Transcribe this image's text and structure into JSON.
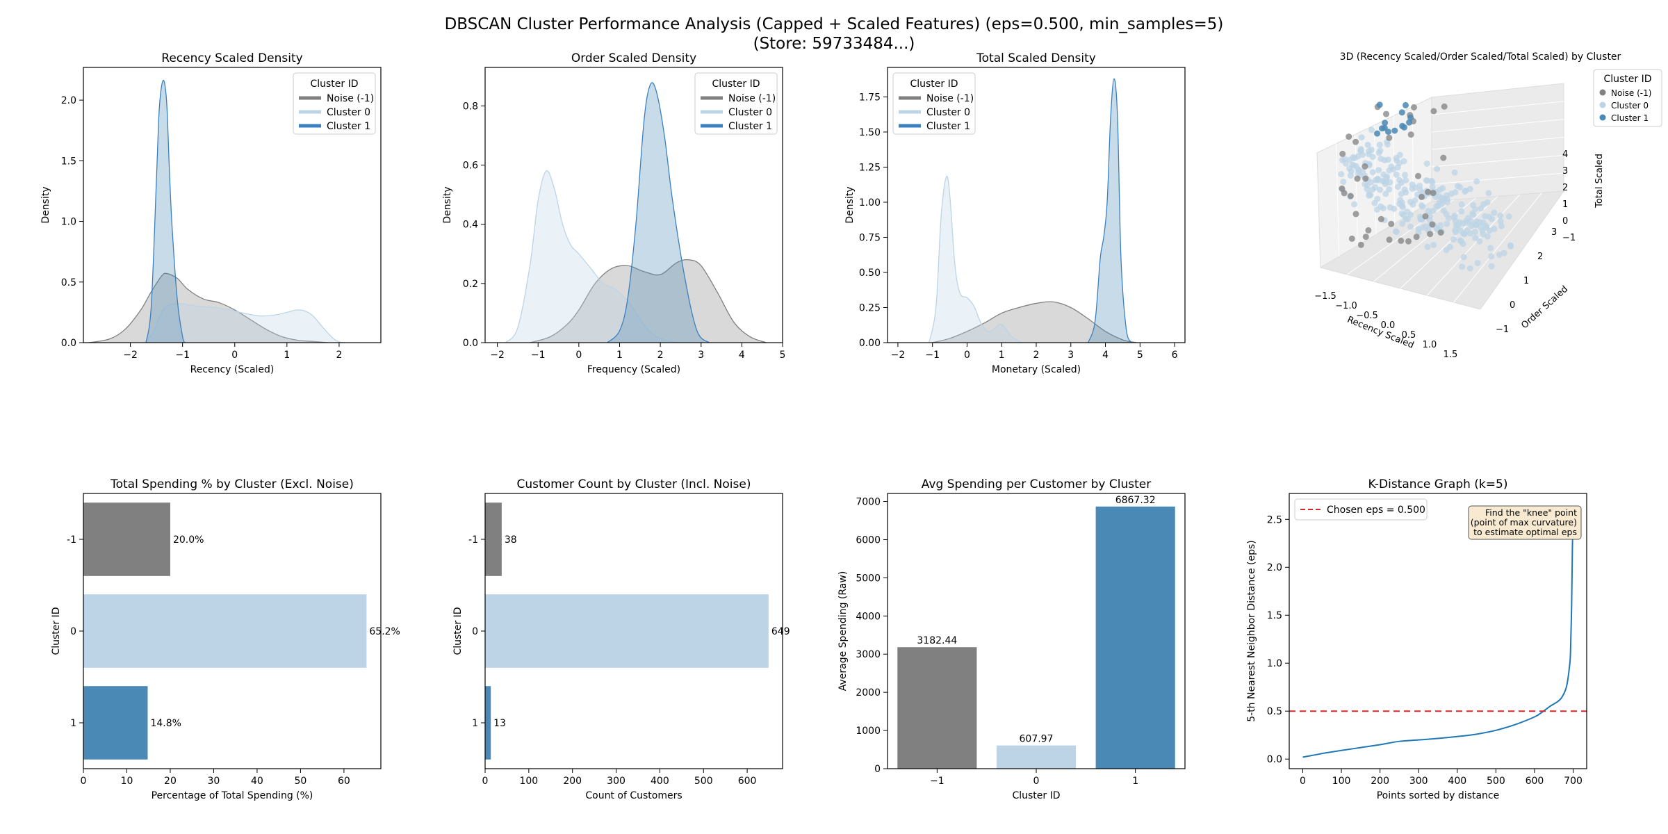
{
  "figure": {
    "title_line1": "DBSCAN Cluster Performance Analysis (Capped + Scaled Features) (eps=0.500, min_samples=5)",
    "title_line2": "(Store: 59733484...)"
  },
  "colors": {
    "noise": "#808080",
    "cluster0": "#bcd4e6",
    "cluster1": "#4a88b5",
    "line_cluster1": "#3a80c0",
    "kdist_line": "#1f77b4",
    "eps_line": "#d62728",
    "annot_bg": "#f7ead0"
  },
  "chart_data": [
    {
      "type": "area",
      "title": "Recency Scaled Density",
      "xlabel": "Recency (Scaled)",
      "ylabel": "Density",
      "xlim": [
        -2.9,
        2.8
      ],
      "ylim": [
        0,
        2.27
      ],
      "xticks": [
        -2,
        -1,
        0,
        1,
        2
      ],
      "yticks": [
        0.0,
        0.5,
        1.0,
        1.5,
        2.0
      ],
      "ytick_labels": [
        "0.0",
        "0.5",
        "1.0",
        "1.5",
        "2.0"
      ],
      "legend": {
        "title": "Cluster ID",
        "position": "top-right",
        "entries": [
          "Noise (-1)",
          "Cluster 0",
          "Cluster 1"
        ]
      },
      "series": [
        {
          "name": "Noise (-1)",
          "x": [
            -2.8,
            -2.4,
            -2.1,
            -1.8,
            -1.6,
            -1.4,
            -1.3,
            -1.1,
            -0.9,
            -0.6,
            -0.3,
            0.0,
            0.3,
            0.6,
            0.9,
            1.2,
            1.5,
            1.8,
            2.1
          ],
          "y": [
            0.0,
            0.03,
            0.11,
            0.27,
            0.42,
            0.55,
            0.57,
            0.53,
            0.44,
            0.36,
            0.33,
            0.27,
            0.19,
            0.11,
            0.05,
            0.02,
            0.01,
            0.0,
            0.0
          ]
        },
        {
          "name": "Cluster 0",
          "x": [
            -1.75,
            -1.6,
            -1.5,
            -1.4,
            -1.3,
            -1.15,
            -1.0,
            -0.7,
            -0.4,
            -0.1,
            0.2,
            0.5,
            0.8,
            1.0,
            1.2,
            1.35,
            1.5,
            1.7,
            1.9,
            2.05
          ],
          "y": [
            0.0,
            0.06,
            0.15,
            0.25,
            0.3,
            0.32,
            0.32,
            0.3,
            0.29,
            0.27,
            0.24,
            0.22,
            0.23,
            0.25,
            0.27,
            0.26,
            0.22,
            0.12,
            0.03,
            0.0
          ]
        },
        {
          "name": "Cluster 1",
          "x": [
            -1.7,
            -1.6,
            -1.5,
            -1.45,
            -1.4,
            -1.35,
            -1.3,
            -1.25,
            -1.2,
            -1.1,
            -1.0,
            -0.95
          ],
          "y": [
            0.0,
            0.3,
            1.35,
            1.9,
            2.12,
            2.15,
            1.95,
            1.4,
            0.95,
            0.35,
            0.05,
            0.0
          ]
        }
      ]
    },
    {
      "type": "area",
      "title": "Order Scaled Density",
      "xlabel": "Frequency (Scaled)",
      "ylabel": "Density",
      "xlim": [
        -2.3,
        5.0
      ],
      "ylim": [
        0,
        0.93
      ],
      "xticks": [
        -2,
        -1,
        0,
        1,
        2,
        3,
        4,
        5
      ],
      "yticks": [
        0.0,
        0.2,
        0.4,
        0.6,
        0.8
      ],
      "ytick_labels": [
        "0.0",
        "0.2",
        "0.4",
        "0.6",
        "0.8"
      ],
      "legend": {
        "title": "Cluster ID",
        "position": "top-right",
        "entries": [
          "Noise (-1)",
          "Cluster 0",
          "Cluster 1"
        ]
      },
      "series": [
        {
          "name": "Noise (-1)",
          "x": [
            -1.2,
            -0.7,
            -0.3,
            0.0,
            0.4,
            0.8,
            1.2,
            1.6,
            2.0,
            2.4,
            2.7,
            3.0,
            3.4,
            3.8,
            4.2,
            4.6
          ],
          "y": [
            0.0,
            0.02,
            0.06,
            0.11,
            0.2,
            0.25,
            0.26,
            0.24,
            0.23,
            0.27,
            0.28,
            0.26,
            0.17,
            0.07,
            0.02,
            0.0
          ]
        },
        {
          "name": "Cluster 0",
          "x": [
            -1.8,
            -1.5,
            -1.2,
            -1.0,
            -0.8,
            -0.6,
            -0.4,
            -0.2,
            0.0,
            0.3,
            0.6,
            0.9,
            1.2,
            1.5,
            1.8,
            2.1,
            2.4
          ],
          "y": [
            0.0,
            0.05,
            0.26,
            0.48,
            0.58,
            0.52,
            0.4,
            0.33,
            0.3,
            0.25,
            0.2,
            0.18,
            0.14,
            0.08,
            0.03,
            0.01,
            0.0
          ]
        },
        {
          "name": "Cluster 1",
          "x": [
            0.7,
            1.0,
            1.2,
            1.4,
            1.6,
            1.75,
            1.9,
            2.1,
            2.3,
            2.6,
            2.9,
            3.2
          ],
          "y": [
            0.0,
            0.04,
            0.15,
            0.4,
            0.75,
            0.87,
            0.85,
            0.7,
            0.48,
            0.22,
            0.04,
            0.0
          ]
        }
      ]
    },
    {
      "type": "area",
      "title": "Total Scaled Density",
      "xlabel": "Monetary (Scaled)",
      "ylabel": "Density",
      "xlim": [
        -2.3,
        6.3
      ],
      "ylim": [
        0,
        1.96
      ],
      "xticks": [
        -2,
        -1,
        0,
        1,
        2,
        3,
        4,
        5,
        6
      ],
      "yticks": [
        0.0,
        0.25,
        0.5,
        0.75,
        1.0,
        1.25,
        1.5,
        1.75
      ],
      "ytick_labels": [
        "0.00",
        "0.25",
        "0.50",
        "0.75",
        "1.00",
        "1.25",
        "1.50",
        "1.75"
      ],
      "legend": {
        "title": "Cluster ID",
        "position": "top-left",
        "entries": [
          "Noise (-1)",
          "Cluster 0",
          "Cluster 1"
        ]
      },
      "series": [
        {
          "name": "Noise (-1)",
          "x": [
            -1.0,
            -0.5,
            0.0,
            0.5,
            1.0,
            1.5,
            2.0,
            2.5,
            3.0,
            3.5,
            4.0,
            4.5,
            4.9
          ],
          "y": [
            0.0,
            0.03,
            0.08,
            0.14,
            0.21,
            0.25,
            0.28,
            0.29,
            0.25,
            0.17,
            0.08,
            0.02,
            0.0
          ]
        },
        {
          "name": "Cluster 0",
          "x": [
            -1.1,
            -0.9,
            -0.75,
            -0.6,
            -0.5,
            -0.35,
            -0.2,
            0.0,
            0.2,
            0.4,
            0.6,
            0.8,
            1.0,
            1.3,
            1.6
          ],
          "y": [
            0.0,
            0.25,
            0.9,
            1.18,
            1.05,
            0.55,
            0.35,
            0.32,
            0.26,
            0.14,
            0.08,
            0.1,
            0.13,
            0.04,
            0.0
          ]
        },
        {
          "name": "Cluster 1",
          "x": [
            3.5,
            3.7,
            3.85,
            3.95,
            4.05,
            4.15,
            4.25,
            4.35,
            4.45,
            4.6,
            4.75
          ],
          "y": [
            0.0,
            0.15,
            0.6,
            0.75,
            1.0,
            1.6,
            1.88,
            1.6,
            0.6,
            0.1,
            0.0
          ]
        }
      ]
    },
    {
      "type": "scatter",
      "title": "3D (Recency Scaled/Order Scaled/Total Scaled) by Cluster",
      "xlabel": "Recency Scaled",
      "ylabel": "Order Scaled",
      "zlabel": "Total Scaled",
      "xticks": [
        "−1.5",
        "−1.0",
        "−0.5",
        "0.0",
        "0.5",
        "1.0",
        "1.5"
      ],
      "yticks": [
        "−1",
        "0",
        "1",
        "2",
        "3"
      ],
      "zticks": [
        "−1",
        "0",
        "1",
        "2",
        "3",
        "4"
      ],
      "legend": {
        "title": "Cluster ID",
        "position": "outside-right",
        "entries": [
          "Noise (-1)",
          "Cluster 0",
          "Cluster 1"
        ]
      }
    },
    {
      "type": "bar",
      "orientation": "horizontal",
      "title": "Total Spending % by Cluster (Excl. Noise)",
      "xlabel": "Percentage of Total Spending (%)",
      "ylabel": "Cluster ID",
      "categories": [
        "-1",
        "0",
        "1"
      ],
      "values": [
        20.0,
        65.2,
        14.8
      ],
      "data_labels": [
        "20.0%",
        "65.2%",
        "14.8%"
      ],
      "xlim": [
        0,
        68.5
      ],
      "xticks": [
        0,
        10,
        20,
        30,
        40,
        50,
        60
      ]
    },
    {
      "type": "bar",
      "orientation": "horizontal",
      "title": "Customer Count by Cluster (Incl. Noise)",
      "xlabel": "Count of Customers",
      "ylabel": "Cluster ID",
      "categories": [
        "-1",
        "0",
        "1"
      ],
      "values": [
        38,
        649,
        13
      ],
      "data_labels": [
        "38",
        "649",
        "13"
      ],
      "xlim": [
        0,
        681
      ],
      "xticks": [
        0,
        100,
        200,
        300,
        400,
        500,
        600
      ]
    },
    {
      "type": "bar",
      "orientation": "vertical",
      "title": "Avg Spending per Customer by Cluster",
      "xlabel": "Cluster ID",
      "ylabel": "Average Spending (Raw)",
      "categories": [
        "-1",
        "0",
        "1"
      ],
      "values": [
        3182.44,
        607.97,
        6867.32
      ],
      "data_labels": [
        "3182.44",
        "607.97",
        "6867.32"
      ],
      "ylim": [
        0,
        7210
      ],
      "yticks": [
        0,
        1000,
        2000,
        3000,
        4000,
        5000,
        6000,
        7000
      ]
    },
    {
      "type": "line",
      "title": "K-Distance Graph (k=5)",
      "xlabel": "Points sorted by distance",
      "ylabel": "5-th Nearest Neighbor Distance (eps)",
      "xlim": [
        -35,
        735
      ],
      "ylim": [
        -0.1,
        2.77
      ],
      "xticks": [
        0,
        100,
        200,
        300,
        400,
        500,
        600,
        700
      ],
      "yticks": [
        0.0,
        0.5,
        1.0,
        1.5,
        2.0,
        2.5
      ],
      "ytick_labels": [
        "0.0",
        "0.5",
        "1.0",
        "1.5",
        "2.0",
        "2.5"
      ],
      "grid": false,
      "legend": {
        "position": "top-left",
        "entries": [
          "Chosen eps = 0.500"
        ]
      },
      "eps": 0.5,
      "annotation": [
        "Find the \"knee\" point",
        "(point of max curvature)",
        "to estimate optimal eps"
      ],
      "series": [
        {
          "name": "k-distance",
          "x": [
            0,
            20,
            40,
            60,
            100,
            150,
            200,
            250,
            300,
            350,
            400,
            450,
            500,
            550,
            600,
            620,
            640,
            660,
            670,
            680,
            685,
            690,
            693,
            696,
            698,
            700
          ],
          "y": [
            0.02,
            0.035,
            0.05,
            0.065,
            0.09,
            0.12,
            0.15,
            0.185,
            0.2,
            0.215,
            0.235,
            0.26,
            0.3,
            0.36,
            0.44,
            0.49,
            0.55,
            0.6,
            0.64,
            0.72,
            0.8,
            0.95,
            1.1,
            1.6,
            2.2,
            2.6
          ]
        }
      ]
    }
  ]
}
